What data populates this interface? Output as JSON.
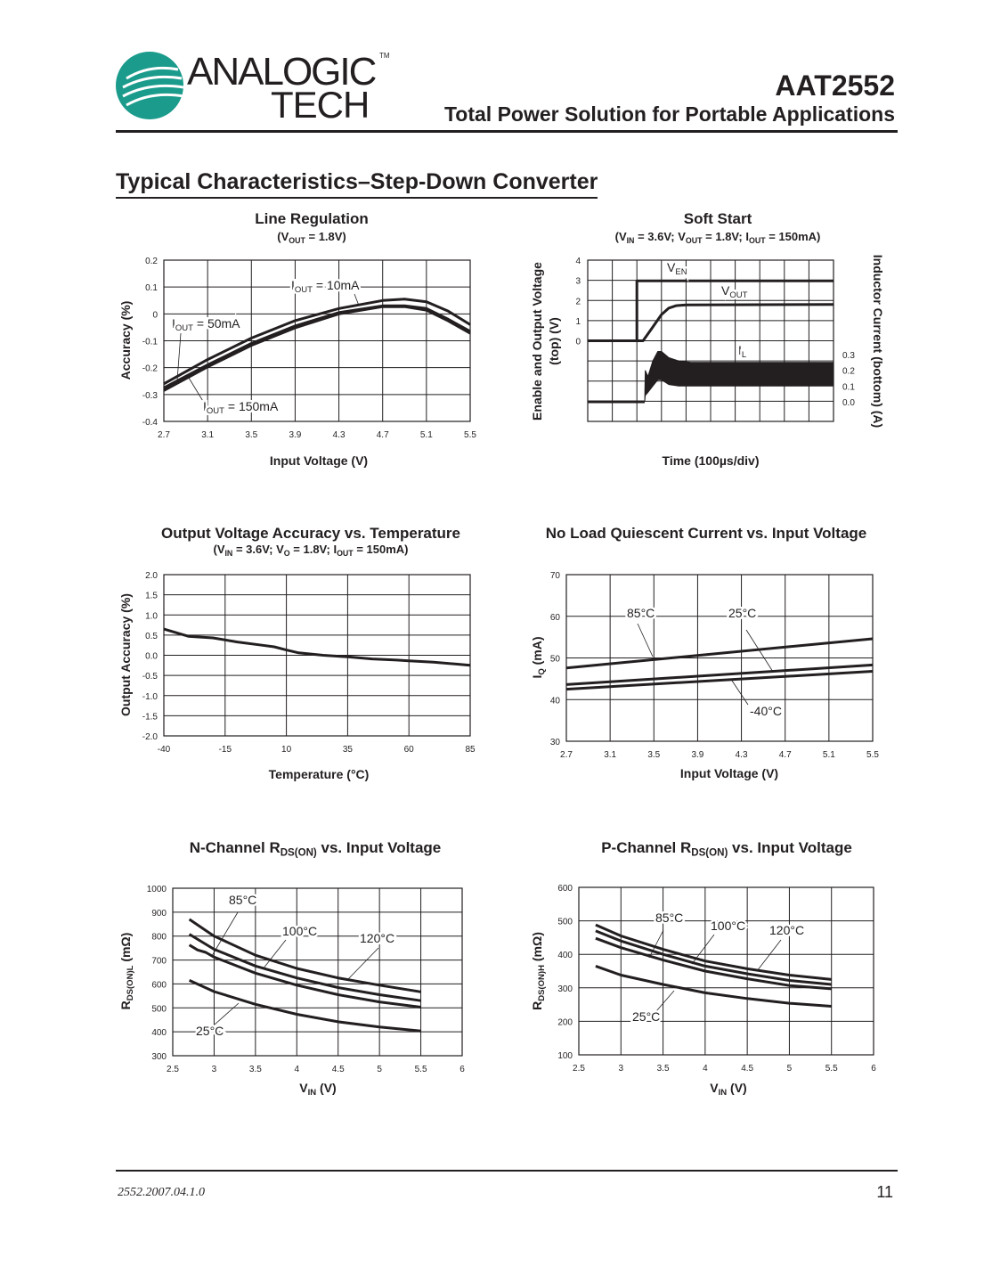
{
  "header": {
    "logo_line1": "ANALOGIC",
    "logo_line2": "TECH",
    "logo_tm": "TM",
    "part_number": "AAT2552",
    "doc_title": "Total Power Solution for Portable Applications",
    "colors": {
      "logo_teal": "#1a9b8c"
    }
  },
  "section_title": "Typical Characteristics–Step-Down Converter",
  "footer": {
    "doc_code": "2552.2007.04.1.0",
    "page_number": "11"
  },
  "chart_data": [
    {
      "id": "line-regulation",
      "type": "line",
      "title": [
        {
          "t": "Line Regulation"
        }
      ],
      "subtitle": [
        {
          "t": "(V"
        },
        {
          "t": "OUT",
          "sub": true
        },
        {
          "t": " = 1.8V)"
        }
      ],
      "xlabel": [
        {
          "t": "Input Voltage (V)"
        }
      ],
      "ylabel": [
        {
          "t": "Accuracy (%)"
        }
      ],
      "xlim": [
        2.7,
        5.5
      ],
      "ylim": [
        -0.4,
        0.2
      ],
      "grid": true,
      "xticks": [
        "2.7",
        "3.1",
        "3.5",
        "3.9",
        "4.3",
        "4.7",
        "5.1",
        "5.5"
      ],
      "yticks": [
        "0.2",
        "0.1",
        "0",
        "-0.1",
        "-0.2",
        "-0.3",
        "-0.4"
      ],
      "series": [
        {
          "name": "IOUT = 10mA",
          "x": [
            2.7,
            3.1,
            3.5,
            3.9,
            4.3,
            4.7,
            4.9,
            5.1,
            5.3,
            5.5
          ],
          "y": [
            -0.26,
            -0.17,
            -0.09,
            -0.025,
            0.02,
            0.05,
            0.055,
            0.045,
            0.01,
            -0.04
          ]
        },
        {
          "name": "IOUT = 50mA",
          "x": [
            2.7,
            3.1,
            3.5,
            3.9,
            4.3,
            4.7,
            4.9,
            5.1,
            5.3,
            5.5
          ],
          "y": [
            -0.275,
            -0.19,
            -0.11,
            -0.045,
            0.005,
            0.03,
            0.03,
            0.02,
            -0.02,
            -0.065
          ]
        },
        {
          "name": "IOUT = 150mA",
          "x": [
            2.7,
            3.1,
            3.5,
            3.9,
            4.3,
            4.7,
            4.9,
            5.1,
            5.3,
            5.5
          ],
          "y": [
            -0.285,
            -0.197,
            -0.117,
            -0.052,
            0.0,
            0.027,
            0.027,
            0.014,
            -0.026,
            -0.072
          ]
        }
      ],
      "annotations": [
        [
          {
            "t": "I"
          },
          {
            "t": "OUT",
            "sub": true
          },
          {
            "t": " = 10mA"
          }
        ],
        [
          {
            "t": "I"
          },
          {
            "t": "OUT",
            "sub": true
          },
          {
            "t": " = 50mA"
          }
        ],
        [
          {
            "t": "I"
          },
          {
            "t": "OUT",
            "sub": true
          },
          {
            "t": " = 150mA"
          }
        ]
      ]
    },
    {
      "id": "soft-start",
      "type": "line",
      "title": [
        {
          "t": "Soft Start"
        }
      ],
      "subtitle": [
        {
          "t": "(V"
        },
        {
          "t": "IN",
          "sub": true
        },
        {
          "t": " = 3.6V; V"
        },
        {
          "t": "OUT",
          "sub": true
        },
        {
          "t": " = 1.8V; I"
        },
        {
          "t": "OUT",
          "sub": true
        },
        {
          "t": " = 150mA)"
        }
      ],
      "xlabel": [
        {
          "t": "Time (100µs/div)"
        }
      ],
      "ylabel_lines": [
        [
          {
            "t": "Enable and Output Voltage"
          }
        ],
        [
          {
            "t": "(top) (V)"
          }
        ]
      ],
      "ylabel_right": [
        {
          "t": "Inductor Current (bottom) (A)"
        }
      ],
      "x_unit": "µs",
      "xlim": [
        0,
        1000
      ],
      "grid": true,
      "yticks": [
        "4",
        "3",
        "2",
        "1",
        "0"
      ],
      "yticks_right": [
        "0.3",
        "0.2",
        "0.1",
        "0.0"
      ],
      "series": [
        {
          "name": "VEN",
          "axis": "left",
          "x": [
            0,
            200,
            200,
            1000
          ],
          "y": [
            0,
            0,
            2.97,
            2.97
          ]
        },
        {
          "name": "VOUT",
          "axis": "left",
          "x": [
            0,
            225,
            260,
            300,
            330,
            360,
            400,
            1000
          ],
          "y": [
            0,
            0,
            0.6,
            1.3,
            1.62,
            1.74,
            1.78,
            1.8
          ]
        },
        {
          "name": "IL",
          "axis": "right",
          "x": [
            0,
            232
          ],
          "y": [
            0,
            0
          ],
          "band_x": [
            232,
            234,
            245,
            265,
            285,
            300,
            330,
            370,
            420,
            1000
          ],
          "band_upper": [
            0.0,
            0.2,
            0.16,
            0.26,
            0.32,
            0.32,
            0.28,
            0.26,
            0.25,
            0.25
          ],
          "band_lower": [
            0.0,
            0.04,
            0.06,
            0.1,
            0.14,
            0.14,
            0.11,
            0.1,
            0.1,
            0.1
          ]
        }
      ],
      "annotations": [
        [
          {
            "t": "V"
          },
          {
            "t": "EN",
            "sub": true
          }
        ],
        [
          {
            "t": "V"
          },
          {
            "t": "OUT",
            "sub": true
          }
        ],
        [
          {
            "t": "I"
          },
          {
            "t": "L",
            "sub": true
          }
        ]
      ]
    },
    {
      "id": "accuracy-vs-temperature",
      "type": "line",
      "title": [
        {
          "t": "Output Voltage Accuracy vs. Temperature"
        }
      ],
      "subtitle": [
        {
          "t": "(V"
        },
        {
          "t": "IN",
          "sub": true
        },
        {
          "t": " = 3.6V; V"
        },
        {
          "t": "O",
          "sub": true
        },
        {
          "t": " = 1.8V; I"
        },
        {
          "t": "OUT",
          "sub": true
        },
        {
          "t": " = 150mA)"
        }
      ],
      "xlabel": [
        {
          "t": "Temperature (°C)"
        }
      ],
      "ylabel": [
        {
          "t": "Output Accuracy (%)"
        }
      ],
      "xlim": [
        -40,
        85
      ],
      "ylim": [
        -2.0,
        2.0
      ],
      "grid": true,
      "xticks": [
        "-40",
        "-15",
        "10",
        "35",
        "60",
        "85"
      ],
      "yticks": [
        "2.0",
        "1.5",
        "1.0",
        "0.5",
        "0.0",
        "-0.5",
        "-1.0",
        "-1.5",
        "-2.0"
      ],
      "series": [
        {
          "x": [
            -40,
            -30,
            -20,
            -10,
            0,
            5,
            10,
            15,
            25,
            35,
            45,
            55,
            60,
            70,
            85
          ],
          "y": [
            0.65,
            0.47,
            0.43,
            0.33,
            0.25,
            0.21,
            0.13,
            0.06,
            0.0,
            -0.04,
            -0.09,
            -0.12,
            -0.14,
            -0.17,
            -0.25
          ]
        }
      ],
      "annotations": []
    },
    {
      "id": "quiescent-current",
      "type": "line",
      "title": [
        {
          "t": "No Load Quiescent Current vs. Input Voltage"
        }
      ],
      "subtitle": [],
      "xlabel": [
        {
          "t": "Input Voltage (V)"
        }
      ],
      "ylabel": [
        {
          "t": "I"
        },
        {
          "t": "Q",
          "sub": true
        },
        {
          "t": " (mA)"
        }
      ],
      "xlim": [
        2.7,
        5.5
      ],
      "ylim": [
        30,
        70
      ],
      "grid": true,
      "xticks": [
        "2.7",
        "3.1",
        "3.5",
        "3.9",
        "4.3",
        "4.7",
        "5.1",
        "5.5"
      ],
      "yticks": [
        "70",
        "60",
        "50",
        "40",
        "30"
      ],
      "series": [
        {
          "name": "85°C",
          "x": [
            2.7,
            5.5
          ],
          "y": [
            47.6,
            54.6
          ]
        },
        {
          "name": "25°C",
          "x": [
            2.7,
            5.5
          ],
          "y": [
            43.6,
            48.3
          ]
        },
        {
          "name": "-40°C",
          "x": [
            2.7,
            5.5
          ],
          "y": [
            42.5,
            46.8
          ]
        }
      ],
      "annotations": [
        [
          {
            "t": "85°C"
          }
        ],
        [
          {
            "t": "25°C"
          }
        ],
        [
          {
            "t": "-40°C"
          }
        ]
      ]
    },
    {
      "id": "n-channel-rdson",
      "type": "line",
      "title": [
        {
          "t": "N-Channel R"
        },
        {
          "t": "DS(ON)",
          "sub": true
        },
        {
          "t": " vs. Input Voltage"
        }
      ],
      "subtitle": [],
      "xlabel": [
        {
          "t": "V"
        },
        {
          "t": "IN",
          "sub": true
        },
        {
          "t": " (V)"
        }
      ],
      "ylabel": [
        {
          "t": "R"
        },
        {
          "t": "DS(ON)L",
          "sub": true
        },
        {
          "t": " (mΩ)"
        }
      ],
      "xlim": [
        2.5,
        6
      ],
      "ylim": [
        300,
        1000
      ],
      "grid": true,
      "xticks": [
        "2.5",
        "3",
        "3.5",
        "4",
        "4.5",
        "5",
        "5.5",
        "6"
      ],
      "yticks": [
        "1000",
        "900",
        "800",
        "700",
        "600",
        "500",
        "400",
        "300"
      ],
      "series": [
        {
          "name": "120°C",
          "x": [
            2.7,
            3.0,
            3.5,
            4.0,
            4.5,
            5.0,
            5.5
          ],
          "y": [
            870,
            800,
            720,
            665,
            625,
            595,
            567
          ]
        },
        {
          "name": "100°C",
          "x": [
            2.7,
            3.0,
            3.5,
            4.0,
            4.5,
            5.0,
            5.5
          ],
          "y": [
            808,
            745,
            675,
            625,
            585,
            555,
            530
          ]
        },
        {
          "name": "85°C",
          "x": [
            2.7,
            2.8,
            2.9,
            3.0,
            3.5,
            4.0,
            4.5,
            5.0,
            5.5
          ],
          "y": [
            763,
            742,
            732,
            712,
            645,
            595,
            555,
            525,
            503
          ]
        },
        {
          "name": "25°C",
          "x": [
            2.7,
            3.0,
            3.5,
            4.0,
            4.5,
            5.0,
            5.5
          ],
          "y": [
            615,
            568,
            515,
            473,
            442,
            420,
            403
          ]
        }
      ],
      "annotations": [
        [
          {
            "t": "85°C"
          }
        ],
        [
          {
            "t": "100°C"
          }
        ],
        [
          {
            "t": "120°C"
          }
        ],
        [
          {
            "t": "25°C"
          }
        ]
      ]
    },
    {
      "id": "p-channel-rdson",
      "type": "line",
      "title": [
        {
          "t": "P-Channel R"
        },
        {
          "t": "DS(ON)",
          "sub": true
        },
        {
          "t": " vs. Input Voltage"
        }
      ],
      "subtitle": [],
      "xlabel": [
        {
          "t": "V"
        },
        {
          "t": "IN",
          "sub": true
        },
        {
          "t": " (V)"
        }
      ],
      "ylabel": [
        {
          "t": "R"
        },
        {
          "t": "DS(ON)H",
          "sub": true
        },
        {
          "t": " (mΩ)"
        }
      ],
      "xlim": [
        2.5,
        6
      ],
      "ylim": [
        100,
        600
      ],
      "grid": true,
      "xticks": [
        "2.5",
        "3",
        "3.5",
        "4",
        "4.5",
        "5",
        "5.5",
        "6"
      ],
      "yticks": [
        "600",
        "500",
        "400",
        "300",
        "200",
        "100"
      ],
      "series": [
        {
          "name": "120°C",
          "x": [
            2.7,
            3.0,
            3.5,
            4.0,
            4.5,
            5.0,
            5.5
          ],
          "y": [
            488,
            455,
            415,
            380,
            357,
            338,
            325
          ]
        },
        {
          "name": "100°C",
          "x": [
            2.7,
            3.0,
            3.5,
            4.0,
            4.5,
            5.0,
            5.5
          ],
          "y": [
            470,
            440,
            400,
            365,
            342,
            322,
            310
          ]
        },
        {
          "name": "85°C",
          "x": [
            2.7,
            3.0,
            3.5,
            4.0,
            4.5,
            5.0,
            5.5
          ],
          "y": [
            448,
            420,
            383,
            350,
            327,
            307,
            297
          ]
        },
        {
          "name": "25°C",
          "x": [
            2.7,
            3.0,
            3.5,
            4.0,
            4.5,
            5.0,
            5.5
          ],
          "y": [
            365,
            338,
            310,
            285,
            268,
            254,
            245
          ]
        }
      ],
      "annotations": [
        [
          {
            "t": "85°C"
          }
        ],
        [
          {
            "t": "100°C"
          }
        ],
        [
          {
            "t": "25°C"
          }
        ],
        [
          {
            "t": "120°C"
          }
        ]
      ]
    }
  ]
}
